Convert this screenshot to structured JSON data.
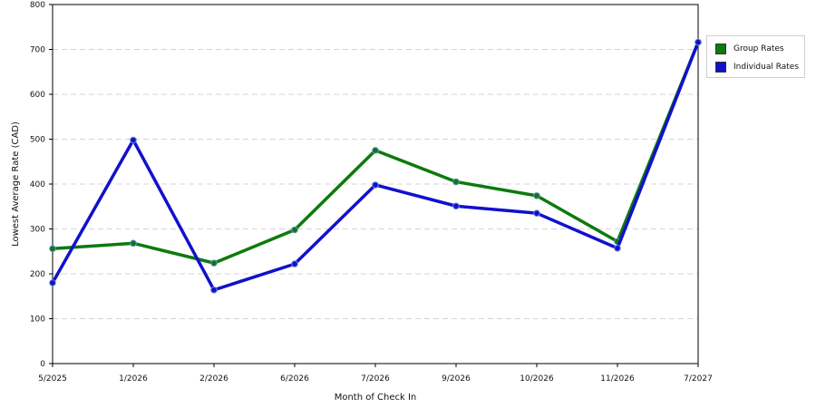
{
  "colors": {
    "group": "#0d7a0d",
    "individual": "#1111cc",
    "grid": "#d4d4d4",
    "axis": "#000000"
  },
  "chart_data": {
    "type": "line",
    "title": "",
    "xlabel": "Month of Check In",
    "ylabel": "Lowest Average Rate (CAD)",
    "ylim": [
      0,
      800
    ],
    "yticks": [
      0,
      100,
      200,
      300,
      400,
      500,
      600,
      700,
      800
    ],
    "grid": true,
    "legend_position": "right",
    "categories": [
      "5/2025",
      "1/2026",
      "2/2026",
      "6/2026",
      "7/2026",
      "9/2026",
      "10/2026",
      "11/2026",
      "7/2027"
    ],
    "series": [
      {
        "name": "Group Rates",
        "color": "#0d7a0d",
        "values": [
          256,
          268,
          224,
          298,
          475,
          405,
          374,
          272,
          716
        ]
      },
      {
        "name": "Individual Rates",
        "color": "#1111cc",
        "values": [
          180,
          498,
          164,
          222,
          398,
          351,
          335,
          257,
          716
        ]
      }
    ]
  }
}
